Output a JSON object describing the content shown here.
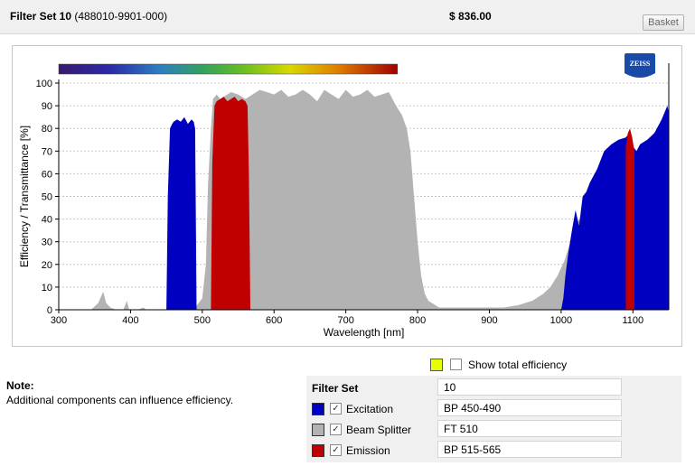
{
  "header": {
    "title_bold": "Filter Set 10",
    "title_code": "(488010-9901-000)",
    "price": "$ 836.00",
    "basket_label": "Basket"
  },
  "chart_data": {
    "type": "area",
    "xlabel": "Wavelength [nm]",
    "ylabel": "Efficiency / Transmittance [%]",
    "xlim": [
      300,
      1150
    ],
    "ylim": [
      0,
      100
    ],
    "xticks": [
      300,
      400,
      500,
      600,
      700,
      800,
      900,
      1000,
      1100
    ],
    "yticks": [
      0,
      10,
      20,
      30,
      40,
      50,
      60,
      70,
      80,
      90,
      100
    ],
    "grid": "horizontal dotted",
    "logo": "ZEISS",
    "spectrum_bar_range_nm": [
      300,
      772
    ],
    "series": [
      {
        "name": "Beam Splitter",
        "color": "#b3b3b3",
        "x": [
          345,
          355,
          362,
          366,
          372,
          380,
          390,
          395,
          398,
          402,
          410,
          418,
          422,
          428,
          440,
          448,
          450,
          455,
          460,
          470,
          480,
          490,
          500,
          505,
          508,
          512,
          515,
          520,
          525,
          530,
          540,
          550,
          560,
          570,
          580,
          590,
          600,
          610,
          620,
          630,
          640,
          650,
          660,
          670,
          680,
          690,
          700,
          710,
          720,
          730,
          740,
          750,
          760,
          770,
          778,
          785,
          790,
          795,
          800,
          805,
          810,
          815,
          820,
          825,
          830,
          840,
          850,
          860,
          880,
          900,
          920,
          940,
          960,
          975,
          985,
          995,
          1005,
          1015,
          1025,
          1040,
          1060,
          1080,
          1100,
          1120,
          1140,
          1150
        ],
        "y": [
          0,
          3,
          8,
          3,
          1,
          0,
          0,
          4,
          0,
          0,
          0,
          1,
          0,
          0,
          0,
          0,
          0,
          0,
          0,
          0,
          0,
          1,
          5,
          20,
          55,
          80,
          93,
          95,
          93,
          94,
          96,
          95,
          93,
          95,
          97,
          96,
          95,
          97,
          94,
          95,
          97,
          95,
          92,
          97,
          95,
          93,
          97,
          94,
          95,
          97,
          94,
          95,
          96,
          90,
          86,
          80,
          70,
          50,
          30,
          15,
          7,
          4,
          3,
          2,
          1,
          1,
          1,
          1,
          1,
          1,
          1,
          2,
          4,
          7,
          10,
          15,
          22,
          32,
          40,
          45,
          50,
          55,
          60,
          65,
          75,
          80
        ]
      },
      {
        "name": "Excitation",
        "color": "#0000c0",
        "x": [
          450,
          452,
          455,
          458,
          460,
          465,
          470,
          475,
          480,
          485,
          488,
          490,
          492,
          1000,
          1003,
          1006,
          1010,
          1015,
          1020,
          1025,
          1030,
          1035,
          1040,
          1050,
          1060,
          1070,
          1080,
          1090,
          1095,
          1100,
          1105,
          1110,
          1120,
          1130,
          1140,
          1148,
          1150
        ],
        "y": [
          0,
          50,
          80,
          82,
          83,
          84,
          83,
          85,
          82,
          84,
          83,
          80,
          0,
          0,
          5,
          15,
          25,
          35,
          44,
          37,
          50,
          52,
          56,
          62,
          70,
          73,
          75,
          76,
          78,
          72,
          70,
          73,
          75,
          78,
          84,
          90,
          87
        ]
      },
      {
        "name": "Emission",
        "color": "#c00000",
        "x": [
          512,
          514,
          517,
          520,
          525,
          530,
          535,
          540,
          545,
          550,
          555,
          560,
          563,
          565,
          567,
          1090,
          1093,
          1096,
          1099,
          1102
        ],
        "y": [
          0,
          65,
          90,
          92,
          93,
          94,
          92,
          93,
          94,
          92,
          93,
          92,
          90,
          60,
          0,
          72,
          78,
          80,
          76,
          70
        ]
      }
    ]
  },
  "efficiency": {
    "label": "Show total efficiency",
    "swatch_color": "#e6ff00",
    "checked": false
  },
  "note": {
    "label": "Note:",
    "text": "Additional components can influence efficiency."
  },
  "filter_table": {
    "header_label": "Filter Set",
    "header_value": "10",
    "rows": [
      {
        "label": "Excitation",
        "value": "BP 450-490",
        "color": "#0000c0",
        "checked": true
      },
      {
        "label": "Beam Splitter",
        "value": "FT 510",
        "color": "#b3b3b3",
        "checked": true
      },
      {
        "label": "Emission",
        "value": "BP 515-565",
        "color": "#c00000",
        "checked": true
      }
    ]
  }
}
